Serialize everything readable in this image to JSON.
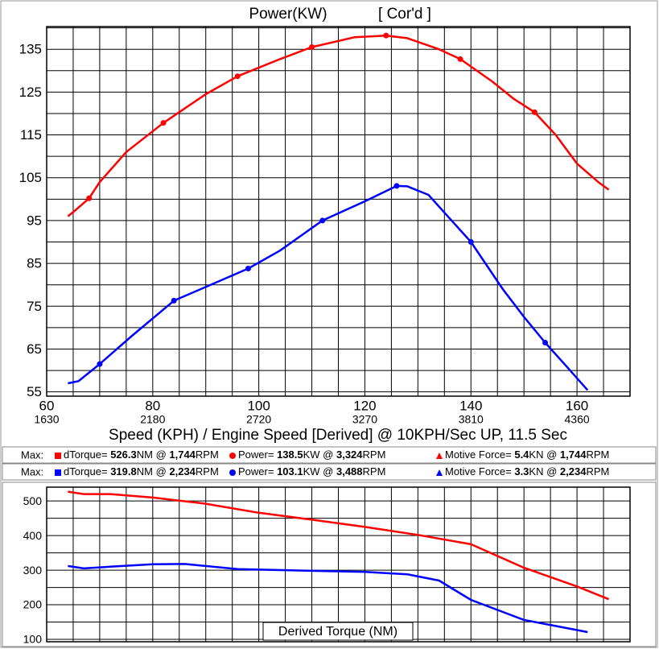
{
  "chart_data": [
    {
      "type": "line",
      "title": "Power(KW)",
      "subtitle": "[ Cor'd ]",
      "x_label": "Speed (KPH) / Engine Speed [Derived] @ 10KPH/Sec UP, 11.5 Sec",
      "xlim": [
        60,
        170
      ],
      "xticks": [
        60,
        80,
        100,
        120,
        140,
        160
      ],
      "x_secondary_ticks": [
        1630,
        2180,
        2720,
        3270,
        3810,
        4360
      ],
      "ylim": [
        54,
        140.3
      ],
      "yticks": [
        55,
        65,
        75,
        85,
        95,
        105,
        115,
        125,
        135
      ],
      "grid": true,
      "grid_step": {
        "x": 5,
        "y": 5
      },
      "series": [
        {
          "color": "#ff0000",
          "x": [
            64,
            65.5,
            68,
            70,
            75,
            82,
            90,
            96,
            104,
            110,
            118,
            124,
            128,
            134,
            138,
            144,
            148,
            152,
            156,
            160,
            164,
            166
          ],
          "values": [
            96,
            97.5,
            100.2,
            104,
            111,
            117.8,
            124.5,
            128.7,
            132.7,
            135.5,
            137.8,
            138.2,
            137.6,
            135,
            132.7,
            127.5,
            123.5,
            120.3,
            115,
            108.3,
            104,
            102.2
          ],
          "marker_indices": [
            2,
            5,
            7,
            9,
            11,
            14,
            17
          ]
        },
        {
          "color": "#0000ff",
          "x": [
            64,
            66,
            70,
            76,
            84,
            90,
            98,
            104,
            112,
            120,
            126,
            128,
            132,
            136,
            140,
            146,
            150,
            154,
            158,
            162
          ],
          "values": [
            57,
            57.5,
            61.5,
            68,
            76.3,
            79.5,
            83.8,
            88,
            95,
            99.5,
            103.1,
            103,
            101,
            95.5,
            90,
            79,
            72.5,
            66.5,
            61,
            55.4
          ],
          "marker_indices": [
            2,
            4,
            6,
            8,
            10,
            14,
            17
          ]
        }
      ]
    },
    {
      "type": "line",
      "title": "Derived Torque (NM)",
      "xlim": [
        60,
        170
      ],
      "ylim": [
        93,
        540
      ],
      "yticks": [
        100,
        200,
        300,
        400,
        500
      ],
      "grid": true,
      "grid_step": {
        "x": 5,
        "y": 50
      },
      "series": [
        {
          "color": "#ff0000",
          "x": [
            64,
            67,
            72,
            80,
            90,
            100,
            110,
            120,
            130,
            140,
            150,
            160,
            166
          ],
          "values": [
            527,
            520,
            520,
            510,
            492,
            466,
            446,
            425,
            402,
            375,
            307,
            253,
            216
          ]
        },
        {
          "color": "#0000ff",
          "x": [
            64,
            67,
            72,
            80,
            86,
            96,
            110,
            120,
            128,
            134,
            140,
            150,
            162
          ],
          "values": [
            312,
            305,
            310,
            317,
            318,
            303,
            298,
            295,
            288,
            270,
            214,
            156,
            121
          ]
        }
      ]
    }
  ],
  "legend_rows": [
    {
      "prefix": "Max:",
      "color": "#ff0000",
      "items": [
        {
          "marker": "square",
          "parts": [
            "dTorque= ",
            "526.3",
            "NM @ ",
            "1,744",
            "RPM"
          ]
        },
        {
          "marker": "circle",
          "parts": [
            "Power= ",
            "138.5",
            "KW @ ",
            "3,324",
            "RPM"
          ]
        },
        {
          "marker": "triangle",
          "parts": [
            "Motive Force= ",
            "5.4",
            "KN @ ",
            "1,744",
            "RPM"
          ]
        }
      ]
    },
    {
      "prefix": "Max:",
      "color": "#0000ff",
      "items": [
        {
          "marker": "square",
          "parts": [
            "dTorque= ",
            "319.8",
            "NM @ ",
            "2,234",
            "RPM"
          ]
        },
        {
          "marker": "circle",
          "parts": [
            "Power= ",
            "103.1",
            "KW @ ",
            "3,488",
            "RPM"
          ]
        },
        {
          "marker": "triangle",
          "parts": [
            "Motive Force= ",
            "3.3",
            "KN @ ",
            "2,234",
            "RPM"
          ]
        }
      ]
    }
  ]
}
